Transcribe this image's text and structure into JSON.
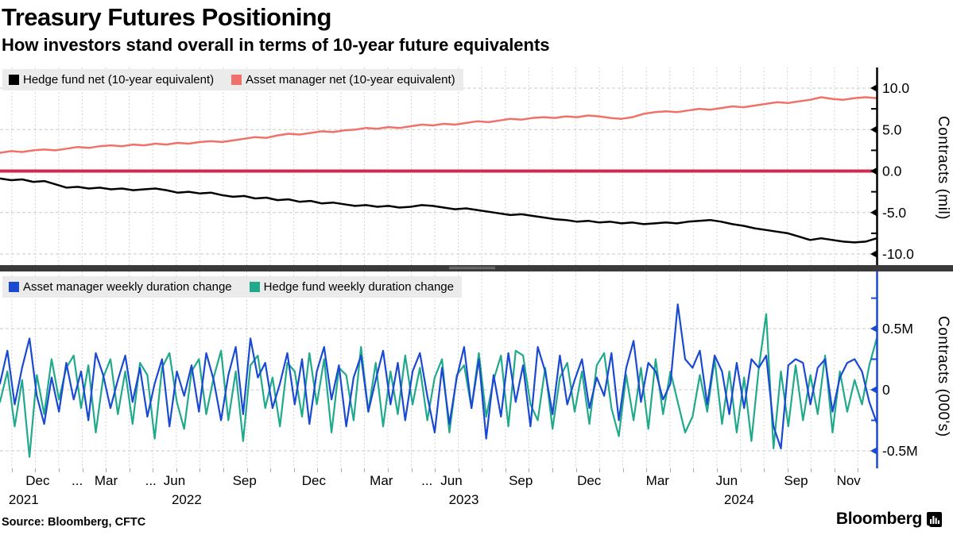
{
  "header": {
    "title": "Treasury Futures Positioning",
    "subtitle": "How investors stand overall in terms of 10-year future equivalents"
  },
  "source": {
    "text": "Source: Bloomberg, CFTC"
  },
  "branding": {
    "logo_text": "Bloomberg"
  },
  "colors": {
    "hedge_fund": "#000000",
    "asset_manager": "#f0716a",
    "zero_line": "#cf2b4f",
    "am_duration": "#1a49d2",
    "hf_duration": "#20a98b",
    "grid": "#c9c9c9",
    "legend_bg": "#ebebeb",
    "separator": "#3a3a3a",
    "axis_black": "#000000"
  },
  "chart_data": [
    {
      "type": "line",
      "panel": "top",
      "ylabel": "Contracts (mil)",
      "ylim": [
        -11.72,
        12.49
      ],
      "hgrid": [
        10,
        5,
        -5,
        -10
      ],
      "zero_line": "zero_line",
      "axis_color": "axis_black",
      "yticks": [
        {
          "v": 10,
          "label": "10.0"
        },
        {
          "v": 5,
          "label": "5.0"
        },
        {
          "v": 0,
          "label": "0.0"
        },
        {
          "v": -5,
          "label": "-5.0"
        },
        {
          "v": -10,
          "label": "-10.0"
        }
      ],
      "yticks_minor": [
        12.5,
        7.5,
        2.5,
        -2.5,
        -7.5
      ],
      "series": [
        {
          "name": "Asset manager net (10-year equivalent)",
          "label": "Asset manager net (10-year equivalent)",
          "color": "asset_manager",
          "width": 2.5,
          "values": [
            2.2,
            2.4,
            2.3,
            2.5,
            2.6,
            2.5,
            2.7,
            2.9,
            2.8,
            3.0,
            3.1,
            3.0,
            3.2,
            3.1,
            3.3,
            3.2,
            3.4,
            3.3,
            3.5,
            3.6,
            3.5,
            3.7,
            3.9,
            4.1,
            4.0,
            4.3,
            4.5,
            4.4,
            4.6,
            4.8,
            4.7,
            4.9,
            5.0,
            5.2,
            5.1,
            5.3,
            5.2,
            5.4,
            5.6,
            5.5,
            5.7,
            5.6,
            5.8,
            6.0,
            5.9,
            6.1,
            6.3,
            6.2,
            6.4,
            6.5,
            6.4,
            6.6,
            6.5,
            6.7,
            6.6,
            6.4,
            6.3,
            6.5,
            6.9,
            7.1,
            7.2,
            7.1,
            7.3,
            7.5,
            7.4,
            7.6,
            7.8,
            7.7,
            7.9,
            8.1,
            8.3,
            8.2,
            8.4,
            8.6,
            8.9,
            8.7,
            8.6,
            8.8,
            8.9,
            8.8
          ]
        },
        {
          "name": "Hedge fund net (10-year equivalent)",
          "label": "Hedge fund net (10-year equivalent)",
          "color": "hedge_fund",
          "width": 2.5,
          "values": [
            -0.9,
            -1.1,
            -1.0,
            -1.3,
            -1.2,
            -1.6,
            -2.0,
            -1.9,
            -2.1,
            -2.0,
            -2.2,
            -2.1,
            -2.3,
            -2.2,
            -2.1,
            -2.3,
            -2.6,
            -2.5,
            -2.7,
            -2.6,
            -2.9,
            -3.1,
            -3.0,
            -3.3,
            -3.2,
            -3.5,
            -3.4,
            -3.7,
            -3.6,
            -3.9,
            -3.8,
            -4.0,
            -4.2,
            -4.1,
            -4.3,
            -4.2,
            -4.4,
            -4.3,
            -4.1,
            -4.2,
            -4.4,
            -4.6,
            -4.5,
            -4.7,
            -4.9,
            -5.1,
            -5.3,
            -5.2,
            -5.4,
            -5.6,
            -5.8,
            -5.9,
            -6.1,
            -6.0,
            -6.2,
            -6.1,
            -6.3,
            -6.2,
            -6.4,
            -6.3,
            -6.2,
            -6.3,
            -6.1,
            -6.0,
            -5.9,
            -6.1,
            -6.4,
            -6.6,
            -6.9,
            -7.1,
            -7.3,
            -7.5,
            -7.9,
            -8.3,
            -8.1,
            -8.3,
            -8.5,
            -8.6,
            -8.5,
            -8.1
          ]
        }
      ]
    },
    {
      "type": "line",
      "panel": "bottom",
      "ylabel": "Contracts (000's)",
      "ylim": [
        -0.643,
        0.968
      ],
      "hgrid": [
        0.5,
        0,
        -0.5
      ],
      "zero_line": null,
      "axis_color": "am_duration",
      "yticks": [
        {
          "v": 0.5,
          "label": "0.5M"
        },
        {
          "v": 0,
          "label": "0"
        },
        {
          "v": -0.5,
          "label": "-0.5M"
        }
      ],
      "yticks_minor": [
        0.75,
        0.25,
        -0.25
      ],
      "series": [
        {
          "name": "Hedge fund weekly duration change",
          "label": "Hedge fund weekly duration change",
          "color": "hf_duration",
          "width": 2.2,
          "values": [
            -0.1,
            0.15,
            -0.3,
            0.08,
            -0.55,
            0.12,
            -0.2,
            0.25,
            -0.08,
            0.18,
            0.28,
            -0.15,
            0.2,
            -0.35,
            0.1,
            0.25,
            -0.2,
            0.15,
            -0.28,
            0.22,
            0.12,
            -0.4,
            0.18,
            0.3,
            -0.1,
            -0.32,
            0.15,
            0.25,
            -0.2,
            0.1,
            0.32,
            -0.25,
            0.15,
            -0.42,
            0.2,
            0.28,
            -0.15,
            0.1,
            -0.3,
            0.22,
            0.15,
            -0.22,
            0.3,
            -0.12,
            0.25,
            -0.35,
            0.18,
            0.12,
            -0.25,
            0.35,
            -0.18,
            0.22,
            -0.3,
            0.15,
            -0.2,
            0.28,
            -0.12,
            0.18,
            -0.25,
            0.1,
            0.25,
            -0.35,
            0.12,
            0.2,
            -0.15,
            0.3,
            -0.22,
            0.08,
            0.28,
            -0.3,
            0.32,
            0.28,
            -0.12,
            -0.25,
            0.18,
            -0.32,
            0.1,
            0.22,
            -0.18,
            0.15,
            -0.28,
            0.2,
            0.3,
            -0.15,
            -0.38,
            0.12,
            -0.25,
            0.18,
            -0.32,
            0.25,
            -0.2,
            0.15,
            -0.1,
            -0.35,
            -0.22,
            0.12,
            -0.18,
            0.25,
            -0.28,
            0.15,
            -0.35,
            0.1,
            -0.42,
            0.18,
            0.62,
            -0.48,
            0.15,
            -0.3,
            0.2,
            -0.25,
            0.12,
            -0.2,
            0.28,
            -0.35,
            0.15,
            -0.18,
            0.08,
            -0.12,
            0.2,
            0.42
          ]
        },
        {
          "name": "Asset manager weekly duration change",
          "label": "Asset manager weekly duration change",
          "color": "am_duration",
          "width": 2.2,
          "values": [
            0.05,
            0.32,
            -0.12,
            0.18,
            0.42,
            -0.05,
            -0.28,
            0.1,
            -0.18,
            0.22,
            -0.08,
            0.15,
            -0.25,
            0.3,
            0.12,
            -0.15,
            0.08,
            0.28,
            -0.1,
            0.18,
            -0.22,
            0.05,
            0.25,
            -0.3,
            0.15,
            -0.05,
            0.2,
            -0.18,
            0.3,
            0.08,
            -0.25,
            0.12,
            0.35,
            -0.2,
            0.42,
            0.1,
            0.22,
            -0.15,
            0.05,
            0.3,
            -0.12,
            0.25,
            -0.28,
            0.15,
            0.35,
            -0.08,
            0.2,
            -0.3,
            0.1,
            0.28,
            -0.18,
            0.08,
            0.32,
            -0.12,
            0.22,
            -0.25,
            0.15,
            0.3,
            -0.05,
            -0.35,
            0.18,
            -0.28,
            0.1,
            0.35,
            -0.15,
            0.25,
            -0.4,
            0.12,
            -0.22,
            0.3,
            -0.1,
            0.2,
            -0.3,
            0.35,
            0.15,
            -0.2,
            0.28,
            -0.12,
            0.08,
            0.25,
            -0.15,
            0.1,
            -0.05,
            0.3,
            -0.25,
            0.18,
            0.4,
            -0.1,
            0.22,
            0.15,
            -0.08,
            0.05,
            0.7,
            0.25,
            0.18,
            0.32,
            -0.12,
            0.28,
            0.15,
            -0.2,
            0.22,
            -0.15,
            0.25,
            0.18,
            0.28,
            -0.3,
            -0.48,
            0.2,
            0.25,
            0.22,
            -0.12,
            0.18,
            0.25,
            -0.18,
            0.1,
            0.22,
            0.25,
            0.15,
            -0.1,
            -0.27
          ]
        }
      ]
    }
  ],
  "x_axis": {
    "n_months": 37,
    "month_labels": [
      {
        "text": "Dec",
        "x_pct": 4.3
      },
      {
        "text": "...",
        "x_pct": 8.8
      },
      {
        "text": "Mar",
        "x_pct": 12.1
      },
      {
        "text": "...",
        "x_pct": 17.2
      },
      {
        "text": "Jun",
        "x_pct": 19.9
      },
      {
        "text": "Sep",
        "x_pct": 27.9
      },
      {
        "text": "Dec",
        "x_pct": 35.8
      },
      {
        "text": "Mar",
        "x_pct": 43.5
      },
      {
        "text": "...",
        "x_pct": 48.7
      },
      {
        "text": "Jun",
        "x_pct": 51.5
      },
      {
        "text": "Sep",
        "x_pct": 59.4
      },
      {
        "text": "Dec",
        "x_pct": 67.2
      },
      {
        "text": "Mar",
        "x_pct": 75.0
      },
      {
        "text": "Jun",
        "x_pct": 82.9
      },
      {
        "text": "Sep",
        "x_pct": 90.8
      },
      {
        "text": "Nov",
        "x_pct": 96.8
      }
    ],
    "year_labels": [
      {
        "text": "2021",
        "x_pct": 2.7
      },
      {
        "text": "2022",
        "x_pct": 21.3
      },
      {
        "text": "2023",
        "x_pct": 52.9
      },
      {
        "text": "2024",
        "x_pct": 84.3
      }
    ]
  }
}
